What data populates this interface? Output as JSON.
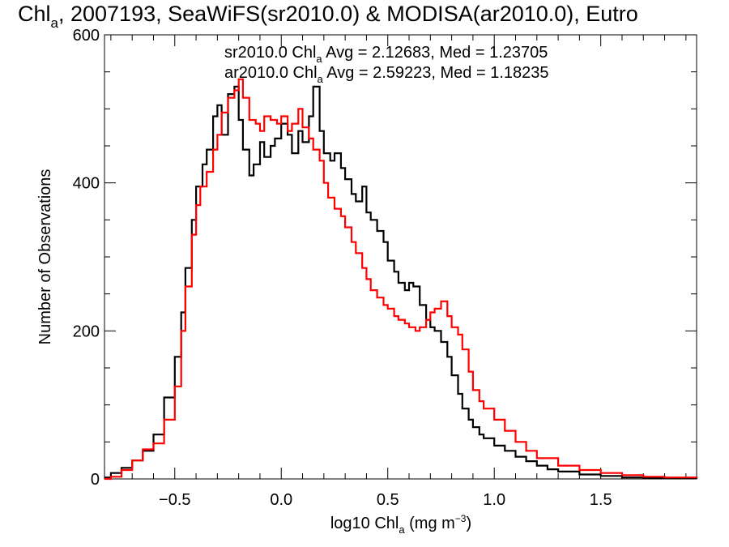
{
  "chart_data": {
    "type": "line",
    "title": {
      "prefix": "Chl",
      "sub": "a",
      "rest": ", 2007193, SeaWiFS(sr2010.0) & MODISA(ar2010.0), Eutro"
    },
    "xlabel": {
      "prefix": "log10 Chl",
      "sub": "a",
      "rest": " (mg m",
      "sup": "−3",
      "end": ")"
    },
    "ylabel": "Number of Observations",
    "xlim": [
      -0.83,
      1.95
    ],
    "ylim": [
      0,
      600
    ],
    "x_ticks": [
      -0.5,
      0.0,
      0.5,
      1.0,
      1.5
    ],
    "x_tick_labels": [
      "−0.5",
      "0.0",
      "0.5",
      "1.0",
      "1.5"
    ],
    "y_ticks": [
      0,
      200,
      400,
      600
    ],
    "y_tick_labels": [
      "0",
      "200",
      "400",
      "600"
    ],
    "grid": false,
    "legend_placement": "top",
    "series": [
      {
        "name": "sr2010.0",
        "color": "#000000",
        "legend": {
          "prefix": "sr2010.0 Chl",
          "sub": "a",
          "rest": " Avg = 2.12683, Med = 1.23705"
        },
        "points": [
          [
            -0.83,
            2
          ],
          [
            -0.8,
            8
          ],
          [
            -0.75,
            15
          ],
          [
            -0.7,
            25
          ],
          [
            -0.65,
            38
          ],
          [
            -0.6,
            60
          ],
          [
            -0.55,
            110
          ],
          [
            -0.5,
            165
          ],
          [
            -0.47,
            225
          ],
          [
            -0.45,
            285
          ],
          [
            -0.42,
            350
          ],
          [
            -0.4,
            395
          ],
          [
            -0.37,
            425
          ],
          [
            -0.35,
            445
          ],
          [
            -0.32,
            490
          ],
          [
            -0.3,
            505
          ],
          [
            -0.28,
            465
          ],
          [
            -0.25,
            520
          ],
          [
            -0.22,
            530
          ],
          [
            -0.2,
            485
          ],
          [
            -0.18,
            445
          ],
          [
            -0.15,
            410
          ],
          [
            -0.13,
            425
          ],
          [
            -0.1,
            455
          ],
          [
            -0.08,
            435
          ],
          [
            -0.05,
            450
          ],
          [
            -0.03,
            460
          ],
          [
            0.0,
            480
          ],
          [
            0.03,
            465
          ],
          [
            0.05,
            440
          ],
          [
            0.08,
            470
          ],
          [
            0.1,
            455
          ],
          [
            0.13,
            490
          ],
          [
            0.15,
            530
          ],
          [
            0.18,
            470
          ],
          [
            0.2,
            440
          ],
          [
            0.23,
            430
          ],
          [
            0.25,
            440
          ],
          [
            0.28,
            420
          ],
          [
            0.3,
            405
          ],
          [
            0.33,
            385
          ],
          [
            0.35,
            375
          ],
          [
            0.38,
            395
          ],
          [
            0.4,
            360
          ],
          [
            0.42,
            350
          ],
          [
            0.45,
            335
          ],
          [
            0.48,
            320
          ],
          [
            0.5,
            295
          ],
          [
            0.53,
            280
          ],
          [
            0.55,
            265
          ],
          [
            0.58,
            255
          ],
          [
            0.6,
            265
          ],
          [
            0.62,
            260
          ],
          [
            0.65,
            235
          ],
          [
            0.68,
            215
          ],
          [
            0.7,
            205
          ],
          [
            0.72,
            200
          ],
          [
            0.75,
            185
          ],
          [
            0.78,
            165
          ],
          [
            0.8,
            140
          ],
          [
            0.83,
            115
          ],
          [
            0.85,
            95
          ],
          [
            0.88,
            80
          ],
          [
            0.9,
            70
          ],
          [
            0.93,
            60
          ],
          [
            0.95,
            55
          ],
          [
            1.0,
            45
          ],
          [
            1.05,
            38
          ],
          [
            1.1,
            30
          ],
          [
            1.15,
            24
          ],
          [
            1.2,
            18
          ],
          [
            1.25,
            13
          ],
          [
            1.3,
            10
          ],
          [
            1.4,
            6
          ],
          [
            1.5,
            4
          ],
          [
            1.6,
            2
          ],
          [
            1.7,
            1
          ],
          [
            1.8,
            1
          ],
          [
            1.95,
            0
          ]
        ]
      },
      {
        "name": "ar2010.0",
        "color": "#ff0000",
        "legend": {
          "prefix": "ar2010.0 Chl",
          "sub": "a",
          "rest": " Avg = 2.59223, Med = 1.18235"
        },
        "points": [
          [
            -0.83,
            0
          ],
          [
            -0.8,
            3
          ],
          [
            -0.75,
            12
          ],
          [
            -0.7,
            25
          ],
          [
            -0.65,
            40
          ],
          [
            -0.6,
            48
          ],
          [
            -0.55,
            80
          ],
          [
            -0.5,
            125
          ],
          [
            -0.47,
            200
          ],
          [
            -0.45,
            260
          ],
          [
            -0.42,
            330
          ],
          [
            -0.4,
            370
          ],
          [
            -0.38,
            395
          ],
          [
            -0.35,
            415
          ],
          [
            -0.32,
            445
          ],
          [
            -0.3,
            465
          ],
          [
            -0.28,
            495
          ],
          [
            -0.25,
            515
          ],
          [
            -0.22,
            525
          ],
          [
            -0.2,
            540
          ],
          [
            -0.18,
            515
          ],
          [
            -0.15,
            485
          ],
          [
            -0.12,
            480
          ],
          [
            -0.1,
            470
          ],
          [
            -0.08,
            490
          ],
          [
            -0.05,
            485
          ],
          [
            -0.02,
            480
          ],
          [
            0.0,
            490
          ],
          [
            0.03,
            470
          ],
          [
            0.05,
            480
          ],
          [
            0.08,
            500
          ],
          [
            0.1,
            475
          ],
          [
            0.13,
            460
          ],
          [
            0.15,
            445
          ],
          [
            0.18,
            430
          ],
          [
            0.2,
            400
          ],
          [
            0.22,
            380
          ],
          [
            0.25,
            365
          ],
          [
            0.28,
            355
          ],
          [
            0.3,
            340
          ],
          [
            0.33,
            320
          ],
          [
            0.35,
            305
          ],
          [
            0.38,
            285
          ],
          [
            0.4,
            270
          ],
          [
            0.42,
            255
          ],
          [
            0.45,
            245
          ],
          [
            0.48,
            235
          ],
          [
            0.5,
            230
          ],
          [
            0.53,
            220
          ],
          [
            0.55,
            215
          ],
          [
            0.58,
            210
          ],
          [
            0.6,
            205
          ],
          [
            0.63,
            200
          ],
          [
            0.65,
            205
          ],
          [
            0.68,
            215
          ],
          [
            0.7,
            225
          ],
          [
            0.72,
            230
          ],
          [
            0.75,
            240
          ],
          [
            0.78,
            220
          ],
          [
            0.8,
            205
          ],
          [
            0.83,
            195
          ],
          [
            0.85,
            175
          ],
          [
            0.88,
            145
          ],
          [
            0.9,
            120
          ],
          [
            0.93,
            105
          ],
          [
            0.95,
            95
          ],
          [
            1.0,
            80
          ],
          [
            1.05,
            65
          ],
          [
            1.1,
            50
          ],
          [
            1.15,
            38
          ],
          [
            1.2,
            28
          ],
          [
            1.3,
            18
          ],
          [
            1.4,
            12
          ],
          [
            1.5,
            8
          ],
          [
            1.6,
            5
          ],
          [
            1.7,
            3
          ],
          [
            1.8,
            2
          ],
          [
            1.95,
            1
          ]
        ]
      }
    ]
  }
}
